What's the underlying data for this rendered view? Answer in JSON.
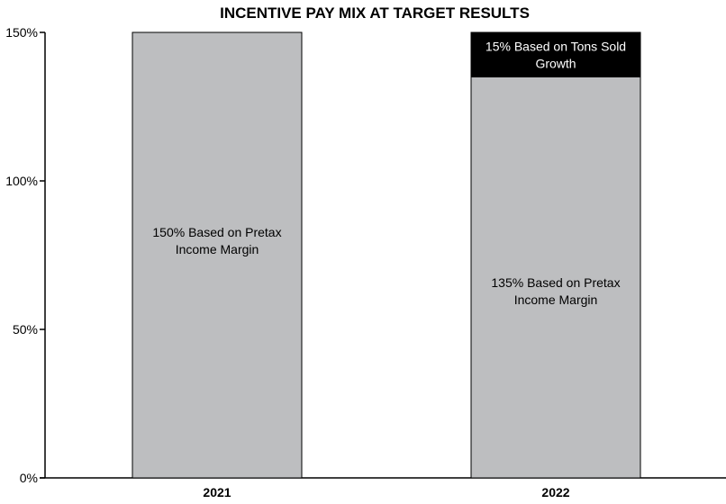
{
  "chart_data": {
    "type": "bar",
    "stacked": true,
    "title": "INCENTIVE PAY MIX AT TARGET RESULTS",
    "xlabel": "",
    "ylabel": "",
    "ylim": [
      0,
      150
    ],
    "yticks": [
      0,
      50,
      100,
      150
    ],
    "ytick_labels": [
      "0%",
      "50%",
      "100%",
      "150%"
    ],
    "grid": false,
    "categories": [
      "2021",
      "2022"
    ],
    "series": [
      {
        "color": "#bdbec0",
        "values": [
          150,
          135
        ],
        "labels": [
          [
            "150% Based on Pretax",
            "Income Margin"
          ],
          [
            "135% Based on Pretax",
            "Income Margin"
          ]
        ]
      },
      {
        "color": "#000000",
        "values": [
          0,
          15
        ],
        "labels": [
          [],
          [
            "15% Based on Tons Sold",
            "Growth"
          ]
        ]
      }
    ]
  }
}
